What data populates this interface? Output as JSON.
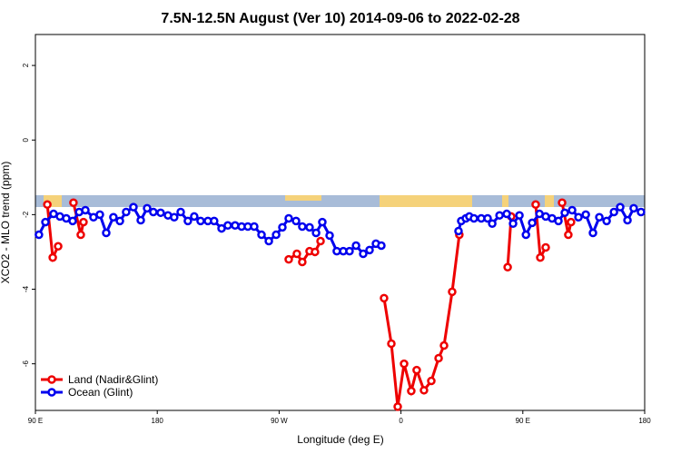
{
  "chart_data": {
    "type": "line",
    "title": "7.5N-12.5N August (Ver 10)   2014-09-06 to 2022-02-28",
    "xlabel": "Longitude (deg E)",
    "ylabel": "XCO2 - MLO trend (ppm)",
    "xlim": [
      90,
      540
    ],
    "ylim": [
      -7.25,
      2.83
    ],
    "xticks": [
      {
        "value": 90,
        "label": "90 E"
      },
      180,
      {
        "value": 270,
        "label": "90 W"
      },
      {
        "value": 360,
        "label": "0"
      },
      {
        "value": 450,
        "label": "90 E"
      },
      {
        "value": 540,
        "label": "180"
      }
    ],
    "yticks": [
      -6,
      -4,
      -2,
      0,
      2
    ],
    "legend": "bottom-left",
    "series": [
      {
        "name": "Land (Nadir&Glint)",
        "color": "#ee0000",
        "x": [
          98.8,
          102.8,
          106.8,
          null,
          118.1,
          123.5,
          125.5,
          null,
          277.1,
          283.1,
          287.1,
          292.5,
          296.5,
          300.6,
          null,
          347.5,
          352.9,
          357.6,
          362.3,
          367.6,
          371.6,
          377.0,
          382.4,
          387.8,
          391.8,
          397.8,
          403.1,
          null,
          438.8,
          441.4,
          null,
          459.5,
          462.9,
          466.9,
          null,
          479.0,
          483.6,
          485.6
        ],
        "values": [
          -1.73,
          -3.15,
          -2.85,
          null,
          -1.68,
          -2.54,
          -2.2,
          null,
          -3.2,
          -3.05,
          -3.27,
          -2.98,
          -3.0,
          -2.71,
          null,
          -4.24,
          -5.46,
          -7.15,
          -6.0,
          -6.73,
          -6.17,
          -6.71,
          -6.46,
          -5.85,
          -5.51,
          -4.07,
          -2.54,
          null,
          -3.41,
          -2.05,
          null,
          -1.73,
          -3.15,
          -2.88,
          null,
          -1.68,
          -2.54,
          -2.2
        ]
      },
      {
        "name": "Ocean (Glint)",
        "color": "#0000ee",
        "x": [
          92.6,
          97.4,
          103.4,
          108.1,
          112.8,
          117.5,
          122.3,
          126.9,
          132.9,
          137.6,
          142.3,
          147.6,
          152.4,
          157.0,
          162.4,
          167.8,
          172.5,
          177.1,
          182.5,
          187.9,
          192.5,
          197.3,
          202.6,
          207.3,
          212.0,
          217.4,
          222.0,
          227.5,
          232.1,
          237.5,
          242.3,
          246.9,
          251.6,
          257.0,
          262.4,
          267.8,
          272.4,
          277.1,
          282.5,
          287.1,
          292.5,
          297.3,
          301.9,
          307.3,
          312.6,
          317.4,
          322.0,
          326.8,
          332.1,
          336.8,
          341.5,
          345.5,
          null,
          402.5,
          404.5,
          407.9,
          410.5,
          413.9,
          419.3,
          424.0,
          427.4,
          432.8,
          438.1,
          442.8,
          447.5,
          452.3,
          456.9,
          462.3,
          466.9,
          471.6,
          476.3,
          481.0,
          486.4,
          491.1,
          496.5,
          501.8,
          506.5,
          511.9,
          517.3,
          521.9,
          527.3,
          531.9,
          537.3
        ],
        "values": [
          -2.54,
          -2.2,
          -1.98,
          -2.05,
          -2.1,
          -2.17,
          -1.93,
          -1.88,
          -2.07,
          -2.0,
          -2.49,
          -2.07,
          -2.17,
          -1.93,
          -1.8,
          -2.15,
          -1.83,
          -1.93,
          -1.95,
          -2.02,
          -2.07,
          -1.93,
          -2.17,
          -2.05,
          -2.17,
          -2.17,
          -2.17,
          -2.37,
          -2.29,
          -2.29,
          -2.32,
          -2.32,
          -2.32,
          -2.54,
          -2.71,
          -2.54,
          -2.34,
          -2.1,
          -2.17,
          -2.32,
          -2.34,
          -2.49,
          -2.2,
          -2.56,
          -2.98,
          -2.98,
          -2.98,
          -2.83,
          -3.05,
          -2.95,
          -2.78,
          -2.83,
          null,
          -2.44,
          -2.17,
          -2.1,
          -2.05,
          -2.1,
          -2.1,
          -2.1,
          -2.24,
          -2.02,
          -1.98,
          -2.24,
          -2.02,
          -2.54,
          -2.22,
          -1.98,
          -2.05,
          -2.1,
          -2.17,
          -1.95,
          -1.88,
          -2.07,
          -2.0,
          -2.49,
          -2.07,
          -2.17,
          -1.93,
          -1.8,
          -2.15,
          -1.83,
          -1.93
        ]
      }
    ]
  }
}
